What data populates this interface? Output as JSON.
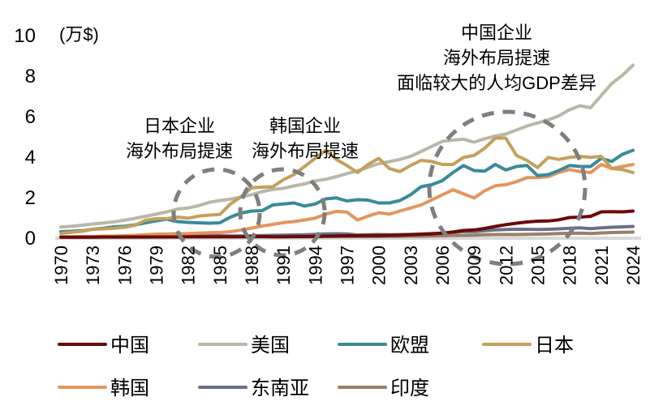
{
  "chart_data": {
    "type": "line",
    "title": "",
    "unit_label": "(万$)",
    "xlabel": "",
    "ylabel": "",
    "ylim": [
      0,
      10
    ],
    "yticks": [
      0,
      2,
      4,
      6,
      8,
      10
    ],
    "xlim": [
      1970,
      2024
    ],
    "xticks": [
      1970,
      1973,
      1976,
      1979,
      1982,
      1985,
      1988,
      1991,
      1994,
      1997,
      2000,
      2003,
      2006,
      2009,
      2012,
      2015,
      2018,
      2021,
      2024
    ],
    "grid": false,
    "legend_position": "bottom",
    "x": [
      1970,
      1971,
      1972,
      1973,
      1974,
      1975,
      1976,
      1977,
      1978,
      1979,
      1980,
      1981,
      1982,
      1983,
      1984,
      1985,
      1986,
      1987,
      1988,
      1989,
      1990,
      1991,
      1992,
      1993,
      1994,
      1995,
      1996,
      1997,
      1998,
      1999,
      2000,
      2001,
      2002,
      2003,
      2004,
      2005,
      2006,
      2007,
      2008,
      2009,
      2010,
      2011,
      2012,
      2013,
      2014,
      2015,
      2016,
      2017,
      2018,
      2019,
      2020,
      2021,
      2022,
      2023,
      2024
    ],
    "series": [
      {
        "name": "中国",
        "color": "#6b0a0a",
        "values": [
          0.01,
          0.01,
          0.01,
          0.01,
          0.02,
          0.02,
          0.02,
          0.02,
          0.02,
          0.02,
          0.02,
          0.02,
          0.03,
          0.03,
          0.03,
          0.03,
          0.03,
          0.03,
          0.04,
          0.04,
          0.03,
          0.03,
          0.04,
          0.04,
          0.05,
          0.06,
          0.07,
          0.08,
          0.08,
          0.09,
          0.09,
          0.1,
          0.11,
          0.13,
          0.15,
          0.17,
          0.21,
          0.27,
          0.34,
          0.37,
          0.44,
          0.54,
          0.63,
          0.7,
          0.76,
          0.8,
          0.81,
          0.87,
          0.98,
          1.0,
          1.04,
          1.26,
          1.27,
          1.26,
          1.3
        ]
      },
      {
        "name": "美国",
        "color": "#b8b8a8",
        "values": [
          0.51,
          0.55,
          0.6,
          0.66,
          0.71,
          0.77,
          0.85,
          0.94,
          1.04,
          1.15,
          1.26,
          1.4,
          1.45,
          1.57,
          1.73,
          1.82,
          1.89,
          1.99,
          2.11,
          2.26,
          2.37,
          2.42,
          2.54,
          2.64,
          2.79,
          2.87,
          3.0,
          3.15,
          3.29,
          3.46,
          3.64,
          3.74,
          3.85,
          4.0,
          4.24,
          4.49,
          4.74,
          4.8,
          4.85,
          4.7,
          4.87,
          5.0,
          5.1,
          5.3,
          5.5,
          5.65,
          5.8,
          6.0,
          6.3,
          6.5,
          6.4,
          7.0,
          7.6,
          8.0,
          8.5
        ]
      },
      {
        "name": "欧盟",
        "color": "#3a8a9a",
        "values": [
          0.28,
          0.3,
          0.33,
          0.4,
          0.45,
          0.52,
          0.55,
          0.62,
          0.72,
          0.82,
          0.9,
          0.78,
          0.74,
          0.72,
          0.7,
          0.72,
          1.0,
          1.2,
          1.3,
          1.32,
          1.6,
          1.65,
          1.7,
          1.55,
          1.65,
          1.9,
          1.95,
          1.8,
          1.86,
          1.84,
          1.7,
          1.7,
          1.82,
          2.1,
          2.5,
          2.6,
          2.8,
          3.2,
          3.55,
          3.3,
          3.27,
          3.6,
          3.33,
          3.5,
          3.55,
          3.05,
          3.1,
          3.3,
          3.55,
          3.5,
          3.5,
          3.9,
          3.75,
          4.1,
          4.3
        ]
      },
      {
        "name": "日本",
        "color": "#c4a05c",
        "values": [
          0.2,
          0.25,
          0.3,
          0.4,
          0.42,
          0.45,
          0.5,
          0.6,
          0.85,
          0.92,
          0.93,
          1.0,
          0.95,
          1.05,
          1.1,
          1.13,
          1.65,
          2.0,
          2.45,
          2.48,
          2.5,
          2.85,
          3.1,
          3.5,
          3.9,
          4.3,
          3.85,
          3.55,
          3.2,
          3.6,
          3.9,
          3.4,
          3.25,
          3.55,
          3.8,
          3.75,
          3.6,
          3.6,
          3.95,
          4.05,
          4.4,
          4.9,
          4.9,
          4.05,
          3.8,
          3.45,
          3.95,
          3.85,
          3.95,
          4.0,
          3.95,
          4.0,
          3.4,
          3.35,
          3.2
        ]
      },
      {
        "name": "韩国",
        "color": "#e3965e",
        "values": [
          0.03,
          0.03,
          0.04,
          0.04,
          0.06,
          0.06,
          0.08,
          0.1,
          0.13,
          0.16,
          0.17,
          0.18,
          0.19,
          0.21,
          0.23,
          0.24,
          0.28,
          0.36,
          0.46,
          0.56,
          0.64,
          0.73,
          0.78,
          0.86,
          0.95,
          1.15,
          1.28,
          1.25,
          0.86,
          1.05,
          1.22,
          1.15,
          1.3,
          1.45,
          1.6,
          1.85,
          2.1,
          2.35,
          2.15,
          1.95,
          2.3,
          2.55,
          2.6,
          2.75,
          2.95,
          2.95,
          3.0,
          3.2,
          3.35,
          3.25,
          3.2,
          3.6,
          3.4,
          3.5,
          3.6
        ]
      },
      {
        "name": "东南亚",
        "color": "#6a7088",
        "values": [
          0.02,
          0.02,
          0.02,
          0.03,
          0.03,
          0.03,
          0.04,
          0.04,
          0.05,
          0.06,
          0.07,
          0.07,
          0.08,
          0.08,
          0.08,
          0.08,
          0.07,
          0.07,
          0.08,
          0.09,
          0.1,
          0.11,
          0.12,
          0.13,
          0.15,
          0.17,
          0.18,
          0.17,
          0.12,
          0.13,
          0.14,
          0.13,
          0.14,
          0.15,
          0.17,
          0.19,
          0.21,
          0.25,
          0.29,
          0.28,
          0.33,
          0.37,
          0.39,
          0.4,
          0.4,
          0.39,
          0.4,
          0.42,
          0.45,
          0.47,
          0.43,
          0.47,
          0.5,
          0.52,
          0.54
        ]
      },
      {
        "name": "印度",
        "color": "#9a8068",
        "values": [
          0.01,
          0.01,
          0.01,
          0.01,
          0.01,
          0.01,
          0.01,
          0.01,
          0.01,
          0.02,
          0.03,
          0.03,
          0.03,
          0.03,
          0.03,
          0.03,
          0.03,
          0.03,
          0.03,
          0.03,
          0.04,
          0.03,
          0.03,
          0.03,
          0.03,
          0.04,
          0.04,
          0.04,
          0.04,
          0.04,
          0.04,
          0.05,
          0.05,
          0.06,
          0.06,
          0.07,
          0.08,
          0.1,
          0.1,
          0.11,
          0.13,
          0.14,
          0.14,
          0.14,
          0.15,
          0.16,
          0.17,
          0.19,
          0.2,
          0.21,
          0.19,
          0.22,
          0.24,
          0.25,
          0.26
        ]
      }
    ],
    "annotations": [
      {
        "lines": [
          "日本企业",
          "海外布局提速"
        ],
        "highlight_years": [
          1982,
          1988
        ]
      },
      {
        "lines": [
          "韩国企业",
          "海外布局提速"
        ],
        "highlight_years": [
          1988,
          1994
        ]
      },
      {
        "lines": [
          "中国企业",
          "海外布局提速",
          "面临较大的人均GDP差异"
        ],
        "highlight_years": [
          2004,
          2019
        ]
      }
    ]
  }
}
